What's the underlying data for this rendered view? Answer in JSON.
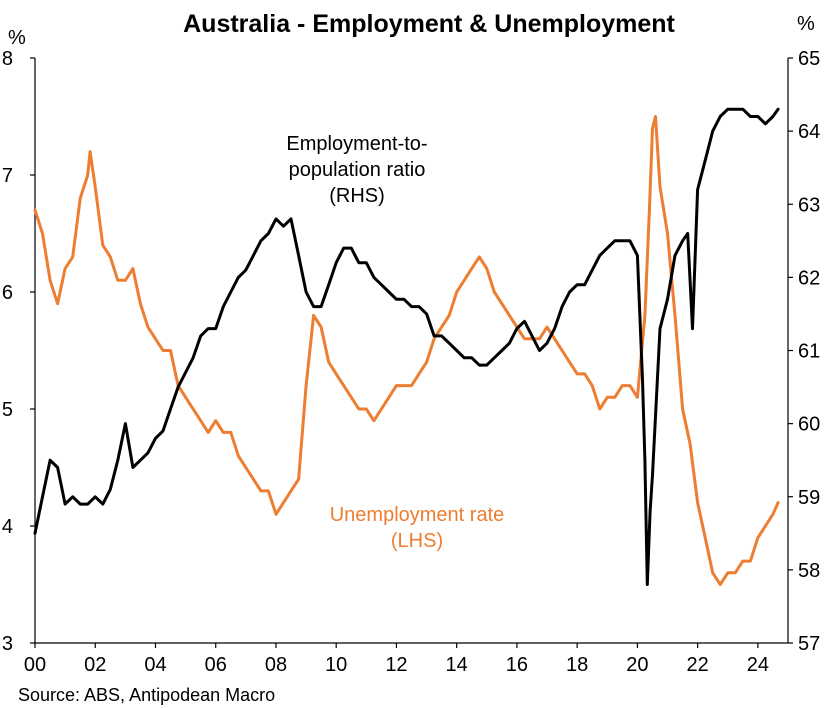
{
  "chart_data": {
    "type": "line",
    "title": "Australia - Employment & Unemployment",
    "source": "Source: ABS, Antipodean Macro",
    "left_unit": "%",
    "right_unit": "%",
    "x_ticks": [
      "00",
      "02",
      "04",
      "06",
      "08",
      "10",
      "12",
      "14",
      "16",
      "18",
      "20",
      "22",
      "24"
    ],
    "x_tick_years": [
      2000,
      2002,
      2004,
      2006,
      2008,
      2010,
      2012,
      2014,
      2016,
      2018,
      2020,
      2022,
      2024
    ],
    "xlim": [
      2000,
      2025.0
    ],
    "ylim_left": [
      3,
      8
    ],
    "ylim_right": [
      57,
      65
    ],
    "y_ticks_left": [
      "3",
      "4",
      "5",
      "6",
      "7",
      "8"
    ],
    "y_ticks_right": [
      "57",
      "58",
      "59",
      "60",
      "61",
      "62",
      "63",
      "64",
      "65"
    ],
    "annotations": {
      "employment": [
        "Employment-to-",
        "population ratio",
        "(RHS)"
      ],
      "unemployment": [
        "Unemployment rate",
        "(LHS)"
      ]
    },
    "series": [
      {
        "name": "Unemployment rate (LHS)",
        "axis": "left",
        "color": "#ED7D31",
        "x": [
          2000.0,
          2000.25,
          2000.5,
          2000.75,
          2001.0,
          2001.25,
          2001.5,
          2001.75,
          2001.83,
          2002.0,
          2002.25,
          2002.5,
          2002.75,
          2003.0,
          2003.25,
          2003.5,
          2003.75,
          2004.0,
          2004.25,
          2004.5,
          2004.75,
          2005.0,
          2005.25,
          2005.5,
          2005.75,
          2006.0,
          2006.25,
          2006.5,
          2006.75,
          2007.0,
          2007.25,
          2007.5,
          2007.75,
          2008.0,
          2008.25,
          2008.5,
          2008.75,
          2009.0,
          2009.25,
          2009.5,
          2009.75,
          2010.0,
          2010.25,
          2010.5,
          2010.75,
          2011.0,
          2011.25,
          2011.5,
          2011.75,
          2012.0,
          2012.25,
          2012.5,
          2012.75,
          2013.0,
          2013.25,
          2013.5,
          2013.75,
          2014.0,
          2014.25,
          2014.5,
          2014.75,
          2015.0,
          2015.25,
          2015.5,
          2015.75,
          2016.0,
          2016.25,
          2016.5,
          2016.75,
          2017.0,
          2017.25,
          2017.5,
          2017.75,
          2018.0,
          2018.25,
          2018.5,
          2018.75,
          2019.0,
          2019.25,
          2019.5,
          2019.75,
          2020.0,
          2020.25,
          2020.4,
          2020.5,
          2020.6,
          2020.75,
          2021.0,
          2021.25,
          2021.5,
          2021.75,
          2022.0,
          2022.25,
          2022.5,
          2022.75,
          2023.0,
          2023.25,
          2023.5,
          2023.75,
          2024.0,
          2024.25,
          2024.5,
          2024.67
        ],
        "values": [
          6.7,
          6.5,
          6.1,
          5.9,
          6.2,
          6.3,
          6.8,
          7.0,
          7.2,
          6.9,
          6.4,
          6.3,
          6.1,
          6.1,
          6.2,
          5.9,
          5.7,
          5.6,
          5.5,
          5.5,
          5.2,
          5.1,
          5.0,
          4.9,
          4.8,
          4.9,
          4.8,
          4.8,
          4.6,
          4.5,
          4.4,
          4.3,
          4.3,
          4.1,
          4.2,
          4.3,
          4.4,
          5.2,
          5.8,
          5.7,
          5.4,
          5.3,
          5.2,
          5.1,
          5.0,
          5.0,
          4.9,
          5.0,
          5.1,
          5.2,
          5.2,
          5.2,
          5.3,
          5.4,
          5.6,
          5.7,
          5.8,
          6.0,
          6.1,
          6.2,
          6.3,
          6.2,
          6.0,
          5.9,
          5.8,
          5.7,
          5.6,
          5.6,
          5.6,
          5.7,
          5.6,
          5.5,
          5.4,
          5.3,
          5.3,
          5.2,
          5.0,
          5.1,
          5.1,
          5.2,
          5.2,
          5.1,
          5.8,
          6.7,
          7.4,
          7.5,
          6.9,
          6.5,
          5.8,
          5.0,
          4.7,
          4.2,
          3.9,
          3.6,
          3.5,
          3.6,
          3.6,
          3.7,
          3.7,
          3.9,
          4.0,
          4.1,
          4.2
        ]
      },
      {
        "name": "Employment-to-population ratio (RHS)",
        "axis": "right",
        "color": "#000000",
        "x": [
          2000.0,
          2000.25,
          2000.5,
          2000.75,
          2001.0,
          2001.25,
          2001.5,
          2001.75,
          2002.0,
          2002.25,
          2002.5,
          2002.75,
          2003.0,
          2003.25,
          2003.5,
          2003.75,
          2004.0,
          2004.25,
          2004.5,
          2004.75,
          2005.0,
          2005.25,
          2005.5,
          2005.75,
          2006.0,
          2006.25,
          2006.5,
          2006.75,
          2007.0,
          2007.25,
          2007.5,
          2007.75,
          2008.0,
          2008.25,
          2008.5,
          2008.75,
          2009.0,
          2009.25,
          2009.5,
          2009.75,
          2010.0,
          2010.25,
          2010.5,
          2010.75,
          2011.0,
          2011.25,
          2011.5,
          2011.75,
          2012.0,
          2012.25,
          2012.5,
          2012.75,
          2013.0,
          2013.25,
          2013.5,
          2013.75,
          2014.0,
          2014.25,
          2014.5,
          2014.75,
          2015.0,
          2015.25,
          2015.5,
          2015.75,
          2016.0,
          2016.25,
          2016.5,
          2016.75,
          2017.0,
          2017.25,
          2017.5,
          2017.75,
          2018.0,
          2018.25,
          2018.5,
          2018.75,
          2019.0,
          2019.25,
          2019.5,
          2019.75,
          2020.0,
          2020.17,
          2020.25,
          2020.33,
          2020.42,
          2020.5,
          2020.75,
          2021.0,
          2021.25,
          2021.5,
          2021.67,
          2021.83,
          2022.0,
          2022.25,
          2022.5,
          2022.75,
          2023.0,
          2023.25,
          2023.5,
          2023.75,
          2024.0,
          2024.25,
          2024.5,
          2024.67
        ],
        "values": [
          58.5,
          59.0,
          59.5,
          59.4,
          58.9,
          59.0,
          58.9,
          58.9,
          59.0,
          58.9,
          59.1,
          59.5,
          60.0,
          59.4,
          59.5,
          59.6,
          59.8,
          59.9,
          60.2,
          60.5,
          60.7,
          60.9,
          61.2,
          61.3,
          61.3,
          61.6,
          61.8,
          62.0,
          62.1,
          62.3,
          62.5,
          62.6,
          62.8,
          62.7,
          62.8,
          62.3,
          61.8,
          61.6,
          61.6,
          61.9,
          62.2,
          62.4,
          62.4,
          62.2,
          62.2,
          62.0,
          61.9,
          61.8,
          61.7,
          61.7,
          61.6,
          61.6,
          61.5,
          61.2,
          61.2,
          61.1,
          61.0,
          60.9,
          60.9,
          60.8,
          60.8,
          60.9,
          61.0,
          61.1,
          61.3,
          61.4,
          61.2,
          61.0,
          61.1,
          61.3,
          61.6,
          61.8,
          61.9,
          61.9,
          62.1,
          62.3,
          62.4,
          62.5,
          62.5,
          62.5,
          62.3,
          60.6,
          59.5,
          57.8,
          58.8,
          59.3,
          61.3,
          61.7,
          62.3,
          62.5,
          62.6,
          61.3,
          63.2,
          63.6,
          64.0,
          64.2,
          64.3,
          64.3,
          64.3,
          64.2,
          64.2,
          64.1,
          64.2,
          64.3
        ]
      }
    ]
  }
}
